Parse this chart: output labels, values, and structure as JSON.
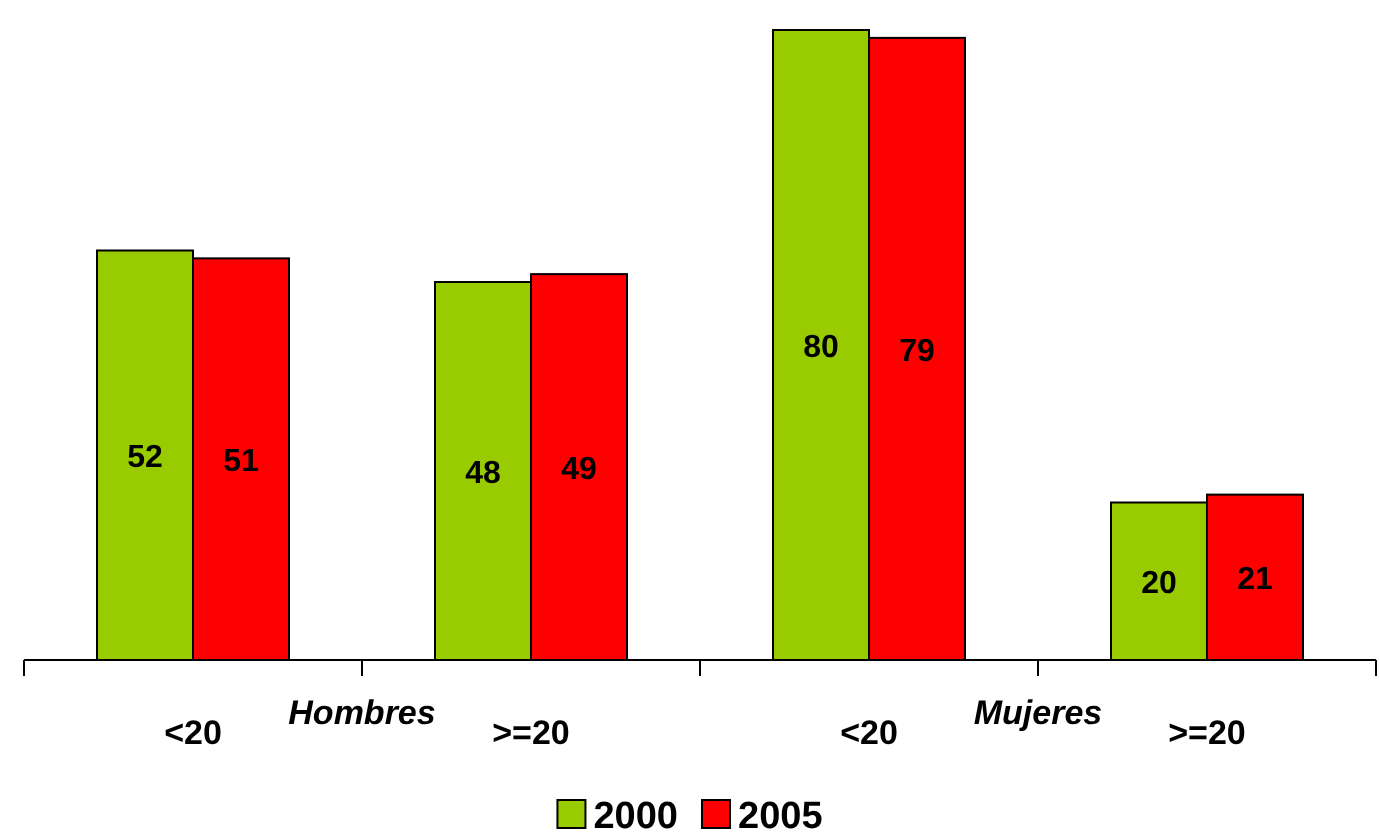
{
  "chart_data": {
    "type": "bar",
    "categories": [
      "<20",
      ">=20",
      "<20",
      ">=20"
    ],
    "series": [
      {
        "name": "2000",
        "color": "#99cc00",
        "values": [
          52,
          48,
          80,
          20
        ]
      },
      {
        "name": "2005",
        "color": "#ff0000",
        "values": [
          51,
          49,
          79,
          21
        ]
      }
    ],
    "annotations": [
      "Hombres",
      "Mujeres"
    ],
    "data_labels": true,
    "legend": "bottom"
  }
}
